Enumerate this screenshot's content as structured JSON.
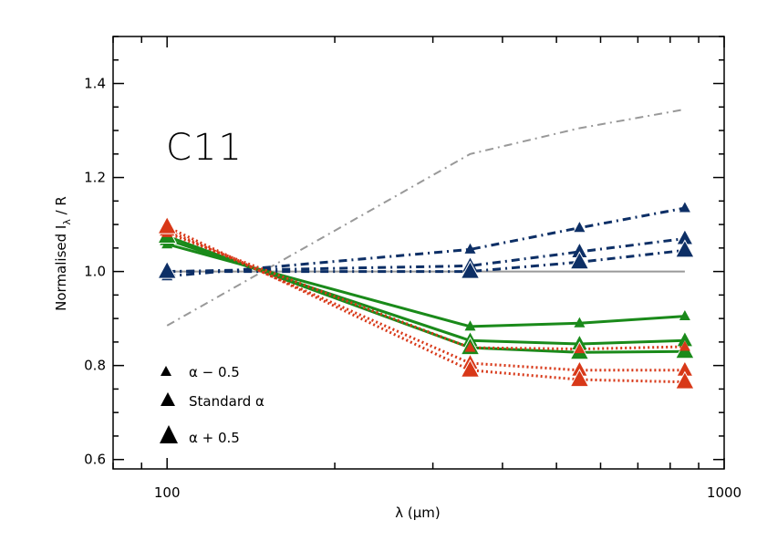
{
  "chart_data": {
    "type": "line",
    "panel_label": "C11",
    "xlabel": "λ (μm)",
    "ylabel_main": "Normalised I",
    "ylabel_sub": "λ",
    "ylabel_tail": " / R",
    "xscale": "log",
    "xlim": [
      80,
      1000
    ],
    "ylim": [
      0.58,
      1.5
    ],
    "xticks": [
      100,
      1000
    ],
    "xtick_labels": [
      "100",
      "1000"
    ],
    "yticks": [
      0.6,
      0.8,
      1.0,
      1.2,
      1.4
    ],
    "ytick_labels": [
      "0.6",
      "0.8",
      "1.0",
      "1.2",
      "1.4"
    ],
    "legend": {
      "position": "bottom-left",
      "entries": [
        {
          "label": "α − 0.5",
          "marker_size": "small"
        },
        {
          "label": "Standard α",
          "marker_size": "medium"
        },
        {
          "label": "α + 0.5",
          "marker_size": "large"
        }
      ]
    },
    "x": [
      100,
      350,
      500,
      850
    ],
    "series": [
      {
        "group": "reference",
        "color": "#999999",
        "style": "dashdot",
        "marker": "none",
        "values": [
          0.885,
          1.25,
          1.305,
          1.345
        ],
        "x_override": [
          100,
          350,
          550,
          850
        ]
      },
      {
        "group": "reference",
        "color": "#999999",
        "style": "solid",
        "marker": "none",
        "values": [
          1.0,
          1.0,
          1.0,
          1.0
        ],
        "x_override": [
          100,
          350,
          550,
          850
        ]
      },
      {
        "group": "blue",
        "color": "#0d2f66",
        "style": "dashdot",
        "marker": "small",
        "values": [
          0.99,
          1.047,
          1.093,
          1.135
        ],
        "x_override": [
          100,
          350,
          550,
          850
        ]
      },
      {
        "group": "blue",
        "color": "#0d2f66",
        "style": "dashdot",
        "marker": "medium",
        "values": [
          1.0,
          1.012,
          1.042,
          1.07
        ],
        "x_override": [
          100,
          350,
          550,
          850
        ]
      },
      {
        "group": "blue",
        "color": "#0d2f66",
        "style": "dashdot",
        "marker": "large",
        "values": [
          1.0,
          1.0,
          1.02,
          1.045
        ],
        "x_override": [
          100,
          350,
          550,
          850
        ]
      },
      {
        "group": "green",
        "color": "#1a8a1a",
        "style": "solid",
        "marker": "small",
        "values": [
          1.058,
          0.883,
          0.89,
          0.905
        ],
        "x_override": [
          100,
          350,
          550,
          850
        ]
      },
      {
        "group": "green",
        "color": "#1a8a1a",
        "style": "solid",
        "marker": "medium",
        "values": [
          1.068,
          0.853,
          0.846,
          0.853
        ],
        "x_override": [
          100,
          350,
          550,
          850
        ]
      },
      {
        "group": "green",
        "color": "#1a8a1a",
        "style": "solid",
        "marker": "large",
        "values": [
          1.075,
          0.838,
          0.828,
          0.83
        ],
        "x_override": [
          100,
          350,
          550,
          850
        ]
      },
      {
        "group": "red",
        "color": "#d83818",
        "style": "dotted",
        "marker": "small",
        "values": [
          1.082,
          0.838,
          0.835,
          0.84
        ],
        "x_override": [
          100,
          350,
          550,
          850
        ]
      },
      {
        "group": "red",
        "color": "#d83818",
        "style": "dotted",
        "marker": "medium",
        "values": [
          1.088,
          0.805,
          0.79,
          0.79
        ],
        "x_override": [
          100,
          350,
          550,
          850
        ]
      },
      {
        "group": "red",
        "color": "#d83818",
        "style": "dotted",
        "marker": "large",
        "values": [
          1.095,
          0.79,
          0.77,
          0.765
        ],
        "x_override": [
          100,
          350,
          550,
          850
        ]
      }
    ]
  }
}
